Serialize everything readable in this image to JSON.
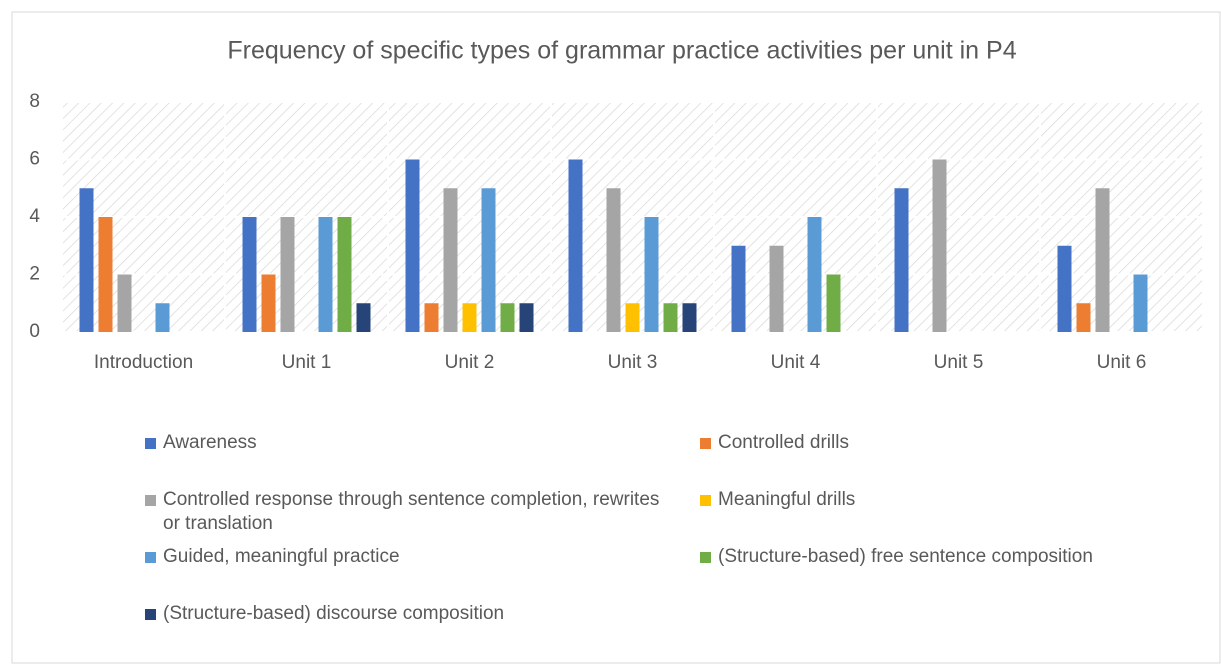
{
  "chart_data": {
    "type": "bar",
    "title": "Frequency of specific types of grammar practice activities per unit in P4",
    "categories": [
      "Introduction",
      "Unit 1",
      "Unit 2",
      "Unit 3",
      "Unit 4",
      "Unit 5",
      "Unit 6"
    ],
    "series": [
      {
        "name": "Awareness",
        "color": "#4472c4",
        "values": [
          5,
          4,
          6,
          6,
          3,
          5,
          3
        ]
      },
      {
        "name": "Controlled drills",
        "color": "#ed7d31",
        "values": [
          4,
          2,
          1,
          0,
          0,
          0,
          1
        ]
      },
      {
        "name": "Controlled response through sentence completion, rewrites or translation",
        "color": "#a5a5a5",
        "values": [
          2,
          4,
          5,
          5,
          3,
          6,
          5
        ]
      },
      {
        "name": "Meaningful drills",
        "color": "#ffc000",
        "values": [
          0,
          0,
          1,
          1,
          0,
          0,
          0
        ]
      },
      {
        "name": "Guided, meaningful practice",
        "color": "#5b9bd5",
        "values": [
          1,
          4,
          5,
          4,
          4,
          0,
          2
        ]
      },
      {
        "name": "(Structure-based) free sentence composition",
        "color": "#70ad47",
        "values": [
          0,
          4,
          1,
          1,
          2,
          0,
          0
        ]
      },
      {
        "name": "(Structure-based) discourse composition",
        "color": "#264478",
        "values": [
          0,
          1,
          1,
          1,
          0,
          0,
          0
        ]
      }
    ],
    "ylim": [
      0,
      8
    ],
    "yticks": [
      0,
      2,
      4,
      6,
      8
    ],
    "grid": true,
    "legend": "bottom"
  }
}
